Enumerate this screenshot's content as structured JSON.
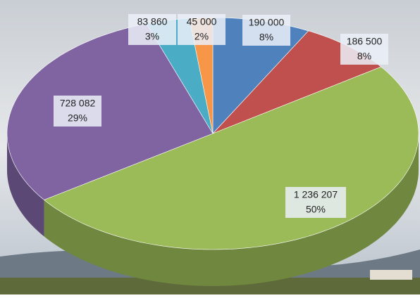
{
  "chart_data": {
    "type": "pie3d",
    "categories": [
      null,
      null,
      null,
      null,
      null,
      null
    ],
    "values": [
      190000,
      186500,
      1236207,
      728082,
      83860,
      45000
    ],
    "value_labels": [
      "190 000",
      "186 500",
      "1 236 207",
      "728 082",
      "83 860",
      "45 000"
    ],
    "percent_labels": [
      "8%",
      "8%",
      "50%",
      "29%",
      "3%",
      "2%"
    ],
    "colors": [
      "#4f81bd",
      "#c0504d",
      "#9bbb59",
      "#8064a2",
      "#4bacc6",
      "#f79646"
    ]
  }
}
